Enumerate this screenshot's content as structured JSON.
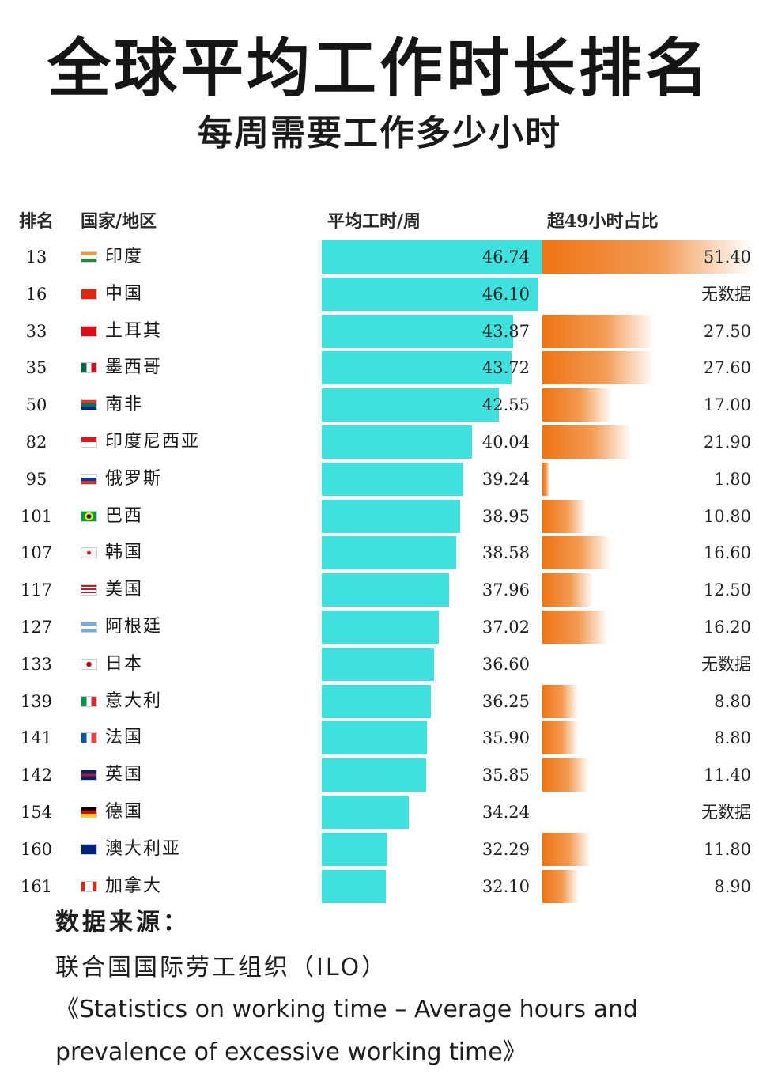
{
  "header": {
    "title": "全球平均工作时长排名",
    "subtitle": "每周需要工作多少小时"
  },
  "columns": {
    "rank": "排名",
    "country": "国家/地区",
    "hours": "平均工时/周",
    "over49": "超49小时占比"
  },
  "no_data_label": "无数据",
  "colors": {
    "hours_bar": "#3fe0de",
    "over49_bar": "#ef7414"
  },
  "chart_data": {
    "type": "table",
    "rows": [
      {
        "rank": "13",
        "country": "印度",
        "flag": "india-flag-icon",
        "hours": 46.74,
        "hours_label": "46.74",
        "over49": 51.4,
        "over49_label": "51.40"
      },
      {
        "rank": "16",
        "country": "中国",
        "flag": "china-flag-icon",
        "hours": 46.1,
        "hours_label": "46.10",
        "over49": null,
        "over49_label": "无数据"
      },
      {
        "rank": "33",
        "country": "土耳其",
        "flag": "turkey-flag-icon",
        "hours": 43.87,
        "hours_label": "43.87",
        "over49": 27.5,
        "over49_label": "27.50"
      },
      {
        "rank": "35",
        "country": "墨西哥",
        "flag": "mexico-flag-icon",
        "hours": 43.72,
        "hours_label": "43.72",
        "over49": 27.6,
        "over49_label": "27.60"
      },
      {
        "rank": "50",
        "country": "南非",
        "flag": "south-africa-flag-icon",
        "hours": 42.55,
        "hours_label": "42.55",
        "over49": 17.0,
        "over49_label": "17.00"
      },
      {
        "rank": "82",
        "country": "印度尼西亚",
        "flag": "indonesia-flag-icon",
        "hours": 40.04,
        "hours_label": "40.04",
        "over49": 21.9,
        "over49_label": "21.90"
      },
      {
        "rank": "95",
        "country": "俄罗斯",
        "flag": "russia-flag-icon",
        "hours": 39.24,
        "hours_label": "39.24",
        "over49": 1.8,
        "over49_label": "1.80"
      },
      {
        "rank": "101",
        "country": "巴西",
        "flag": "brazil-flag-icon",
        "hours": 38.95,
        "hours_label": "38.95",
        "over49": 10.8,
        "over49_label": "10.80"
      },
      {
        "rank": "107",
        "country": "韩国",
        "flag": "korea-flag-icon",
        "hours": 38.58,
        "hours_label": "38.58",
        "over49": 16.6,
        "over49_label": "16.60"
      },
      {
        "rank": "117",
        "country": "美国",
        "flag": "usa-flag-icon",
        "hours": 37.96,
        "hours_label": "37.96",
        "over49": 12.5,
        "over49_label": "12.50"
      },
      {
        "rank": "127",
        "country": "阿根廷",
        "flag": "argentina-flag-icon",
        "hours": 37.02,
        "hours_label": "37.02",
        "over49": 16.2,
        "over49_label": "16.20"
      },
      {
        "rank": "133",
        "country": "日本",
        "flag": "japan-flag-icon",
        "hours": 36.6,
        "hours_label": "36.60",
        "over49": null,
        "over49_label": "无数据"
      },
      {
        "rank": "139",
        "country": "意大利",
        "flag": "italy-flag-icon",
        "hours": 36.25,
        "hours_label": "36.25",
        "over49": 8.8,
        "over49_label": "8.80"
      },
      {
        "rank": "141",
        "country": "法国",
        "flag": "france-flag-icon",
        "hours": 35.9,
        "hours_label": "35.90",
        "over49": 8.8,
        "over49_label": "8.80"
      },
      {
        "rank": "142",
        "country": "英国",
        "flag": "uk-flag-icon",
        "hours": 35.85,
        "hours_label": "35.85",
        "over49": 11.4,
        "over49_label": "11.40"
      },
      {
        "rank": "154",
        "country": "德国",
        "flag": "germany-flag-icon",
        "hours": 34.24,
        "hours_label": "34.24",
        "over49": null,
        "over49_label": "无数据"
      },
      {
        "rank": "160",
        "country": "澳大利亚",
        "flag": "australia-flag-icon",
        "hours": 32.29,
        "hours_label": "32.29",
        "over49": 11.8,
        "over49_label": "11.80"
      },
      {
        "rank": "161",
        "country": "加拿大",
        "flag": "canada-flag-icon",
        "hours": 32.1,
        "hours_label": "32.10",
        "over49": 8.9,
        "over49_label": "8.90"
      }
    ]
  },
  "source": {
    "title": "数据来源：",
    "org": "联合国国际劳工组织（ILO）",
    "reference": "《Statistics on working time – Average hours and prevalence of excessive working time》"
  }
}
